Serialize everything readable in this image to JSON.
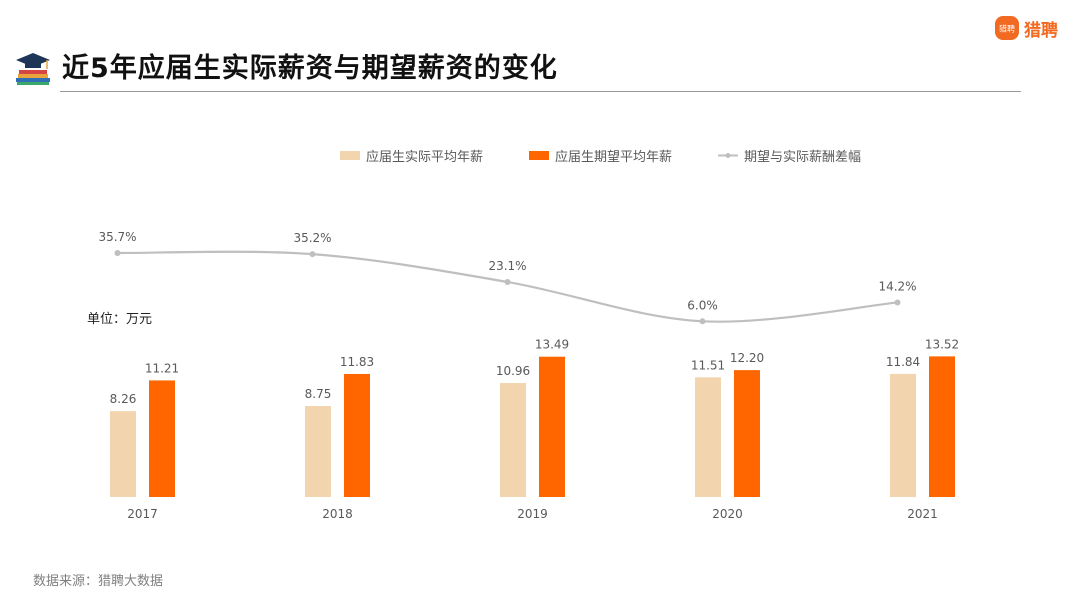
{
  "header": {
    "title": "近5年应届生实际薪资与期望薪资的变化",
    "logo_text": "猎聘",
    "logo_mark_text": "猎聘",
    "icon": "graduation-cap-books-icon"
  },
  "legend": {
    "actual": "应届生实际平均年薪",
    "expected": "应届生期望平均年薪",
    "gap": "期望与实际薪酬差幅"
  },
  "unit_label": "单位：万元",
  "source_label": "数据来源：猎聘大数据",
  "colors": {
    "actual": "#f2d5ae",
    "expected": "#ff6600",
    "gap_line": "#bfbfbf",
    "brand": "#f26a21"
  },
  "chart_data": {
    "type": "bar",
    "categories": [
      "2017",
      "2018",
      "2019",
      "2020",
      "2021"
    ],
    "series": [
      {
        "name": "应届生实际平均年薪",
        "type": "bar",
        "values": [
          8.26,
          8.75,
          10.96,
          11.51,
          11.84
        ],
        "labels": [
          "8.26",
          "8.75",
          "10.96",
          "11.51",
          "11.84"
        ]
      },
      {
        "name": "应届生期望平均年薪",
        "type": "bar",
        "values": [
          11.21,
          11.83,
          13.49,
          12.2,
          13.52
        ],
        "labels": [
          "11.21",
          "11.83",
          "13.49",
          "12.20",
          "13.52"
        ]
      },
      {
        "name": "期望与实际薪酬差幅",
        "type": "line",
        "values": [
          35.7,
          35.2,
          23.1,
          6.0,
          14.2
        ],
        "labels": [
          "35.7%",
          "35.2%",
          "23.1%",
          "6.0%",
          "14.2%"
        ]
      }
    ],
    "ylabel": "单位：万元",
    "grid": false,
    "legend_position": "top-center"
  }
}
